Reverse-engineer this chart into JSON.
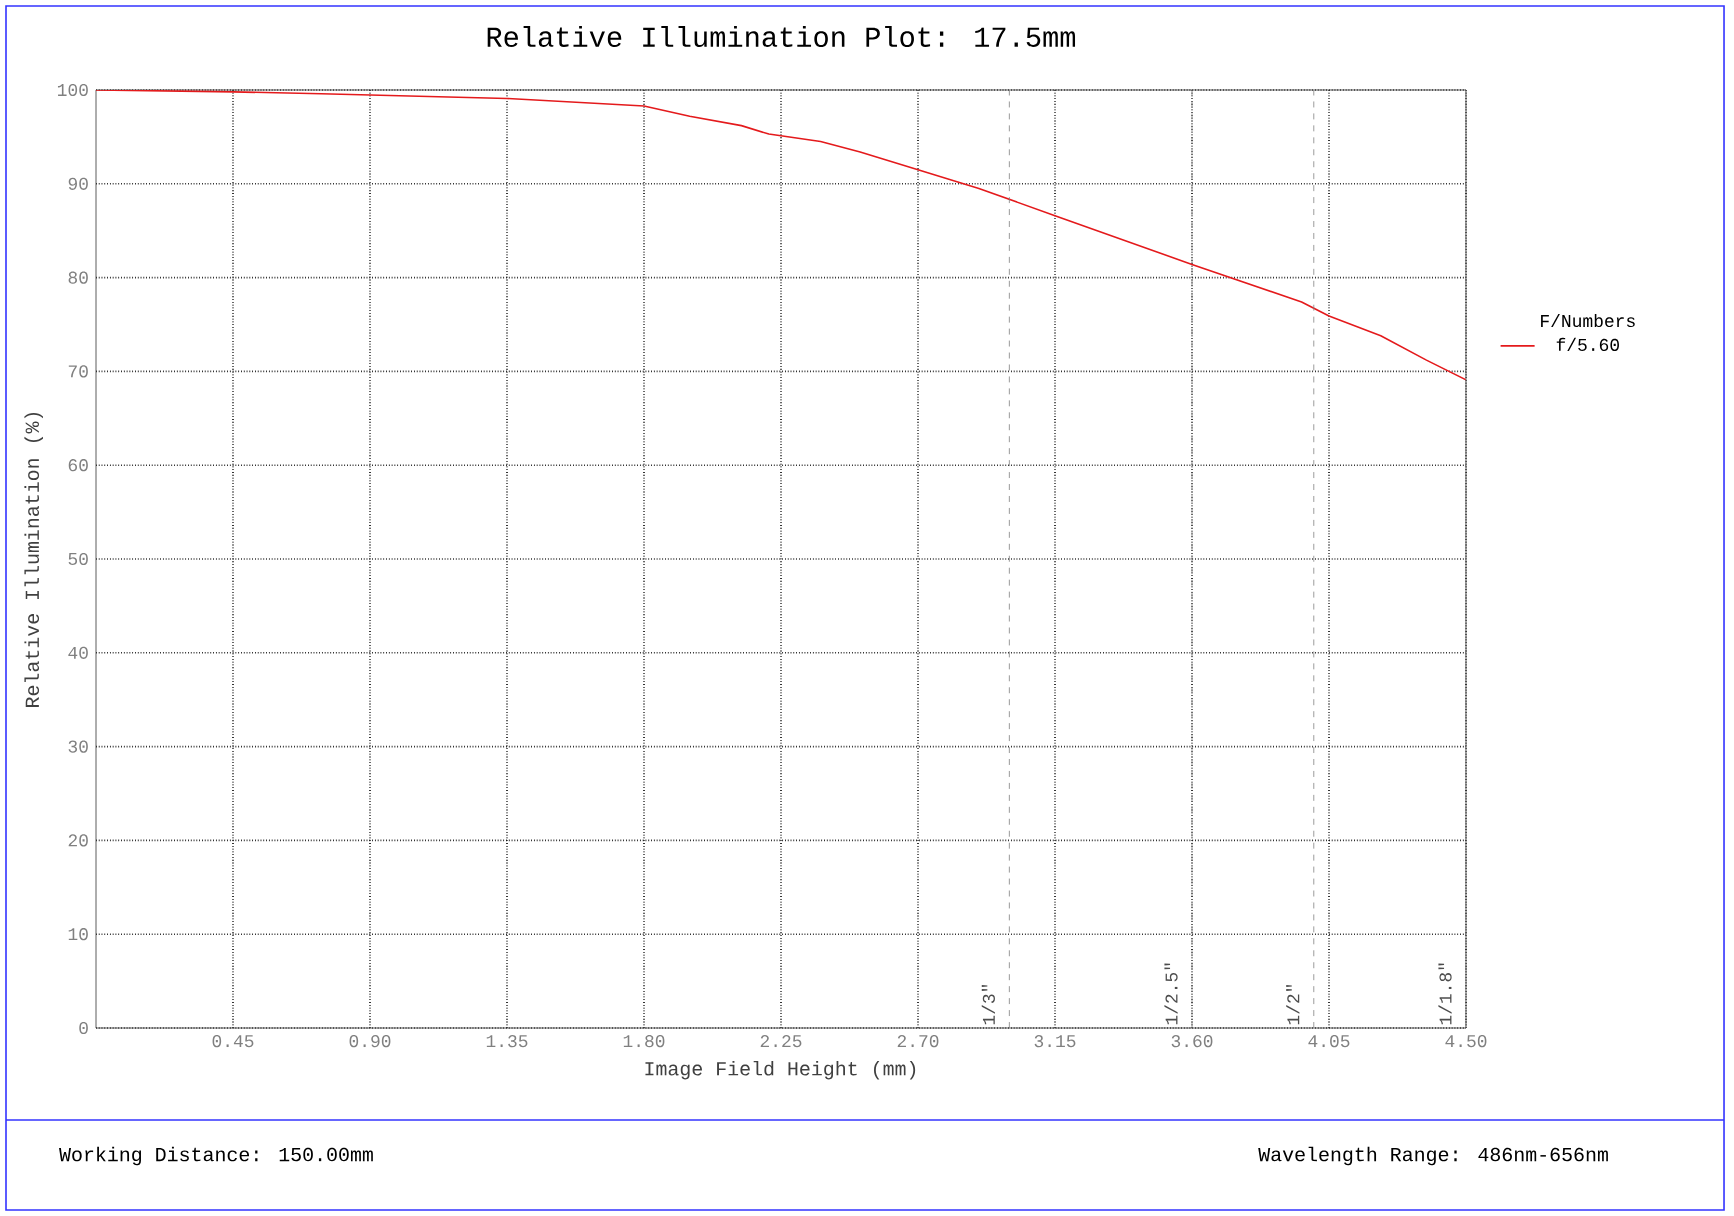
{
  "chart_data": {
    "type": "line",
    "title": "Relative Illumination Plot: 17.5mm",
    "xlabel": "Image Field Height (mm)",
    "ylabel": "Relative Illumination (%)",
    "legend_title": "F/Numbers",
    "legend": "right",
    "grid": true,
    "xlim": [
      0,
      4.5
    ],
    "ylim": [
      0,
      100
    ],
    "xticks": [
      {
        "value": 0.45,
        "label": "0.45"
      },
      {
        "value": 0.9,
        "label": "0.90"
      },
      {
        "value": 1.35,
        "label": "1.35"
      },
      {
        "value": 1.8,
        "label": "1.80"
      },
      {
        "value": 2.25,
        "label": "2.25"
      },
      {
        "value": 2.7,
        "label": "2.70"
      },
      {
        "value": 3.15,
        "label": "3.15"
      },
      {
        "value": 3.6,
        "label": "3.60"
      },
      {
        "value": 4.05,
        "label": "4.05"
      },
      {
        "value": 4.5,
        "label": "4.50"
      }
    ],
    "yticks": [
      0,
      10,
      20,
      30,
      40,
      50,
      60,
      70,
      80,
      90,
      100
    ],
    "x": [
      0,
      0.45,
      0.74,
      1.35,
      1.8,
      1.95,
      2.12,
      2.21,
      2.38,
      2.51,
      2.7,
      2.9,
      3.15,
      3.6,
      3.96,
      4.05,
      4.22,
      4.37,
      4.5
    ],
    "series": [
      {
        "name": "f/5.60",
        "color": "#e41a1c",
        "values": [
          100,
          99.8,
          99.6,
          99.1,
          98.3,
          97.2,
          96.2,
          95.3,
          94.5,
          93.4,
          91.5,
          89.5,
          86.6,
          81.4,
          77.4,
          75.9,
          73.8,
          71.2,
          69.1
        ]
      }
    ],
    "ref_lines": [
      {
        "axis": "x",
        "value": 3.0,
        "color": "#808080",
        "line_style": "dashed"
      },
      {
        "axis": "x",
        "value": 3.6,
        "color": "#808080",
        "line_style": "dashed"
      },
      {
        "axis": "x",
        "value": 4.0,
        "color": "#808080",
        "line_style": "dashed"
      },
      {
        "axis": "x",
        "value": 4.5,
        "color": "#808080",
        "line_style": "dashed"
      }
    ],
    "annotations": [
      "Working Distance: 150.00mm",
      "Wavelength Range: 486nm-656nm",
      {
        "text": "1/3\"",
        "x": 3.0,
        "y": 0
      },
      {
        "text": "1/2.5\"",
        "x": 3.6,
        "y": 0
      },
      {
        "text": "1/2\"",
        "x": 4.0,
        "y": 0
      },
      {
        "text": "1/1.8\"",
        "x": 4.5,
        "y": 0
      }
    ]
  }
}
